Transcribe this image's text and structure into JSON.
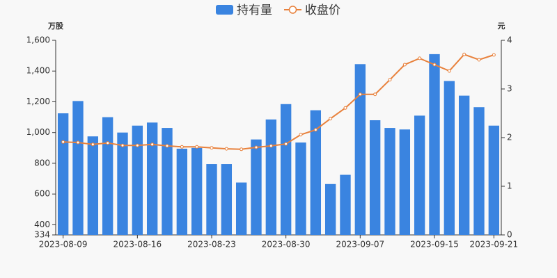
{
  "chart_data": {
    "type": "bar_line",
    "categories": [
      "2023-08-09",
      null,
      null,
      null,
      null,
      "2023-08-16",
      null,
      null,
      null,
      null,
      "2023-08-23",
      null,
      null,
      null,
      null,
      "2023-08-30",
      null,
      null,
      null,
      null,
      "2023-09-07",
      null,
      null,
      null,
      null,
      "2023-09-15",
      null,
      null,
      null,
      "2023-09-21"
    ],
    "series": [
      {
        "name": "持有量",
        "color": "#3a84e0",
        "type": "bar",
        "axis": "y",
        "values": [
          1125,
          1205,
          975,
          1100,
          1000,
          1045,
          1065,
          1030,
          895,
          900,
          795,
          795,
          675,
          955,
          1085,
          1185,
          935,
          1145,
          665,
          725,
          1445,
          1080,
          1030,
          1020,
          1110,
          1510,
          1335,
          1240,
          1165,
          1045
        ]
      },
      {
        "name": "收盘价",
        "color": "#e8813c",
        "type": "line",
        "axis": "y2",
        "values": [
          1.91,
          1.9,
          1.86,
          1.89,
          1.84,
          1.84,
          1.86,
          1.83,
          1.81,
          1.81,
          1.79,
          1.77,
          1.76,
          1.8,
          1.83,
          1.87,
          2.06,
          2.16,
          2.39,
          2.61,
          2.89,
          2.89,
          3.19,
          3.5,
          3.63,
          3.5,
          3.37,
          3.71,
          3.6,
          3.7
        ]
      }
    ],
    "ylabel": "万股",
    "y2label": "元",
    "ylim": [
      334,
      1600
    ],
    "yticks": [
      334,
      400,
      600,
      800,
      {
        "value": 1000,
        "label": "1,000"
      },
      {
        "value": 1200,
        "label": "1,200"
      },
      {
        "value": 1400,
        "label": "1,400"
      },
      {
        "value": 1600,
        "label": "1,600"
      }
    ],
    "y2lim": [
      0,
      4
    ],
    "y2ticks": [
      0,
      1,
      2,
      3,
      4
    ],
    "grid": false,
    "legend": "top"
  }
}
